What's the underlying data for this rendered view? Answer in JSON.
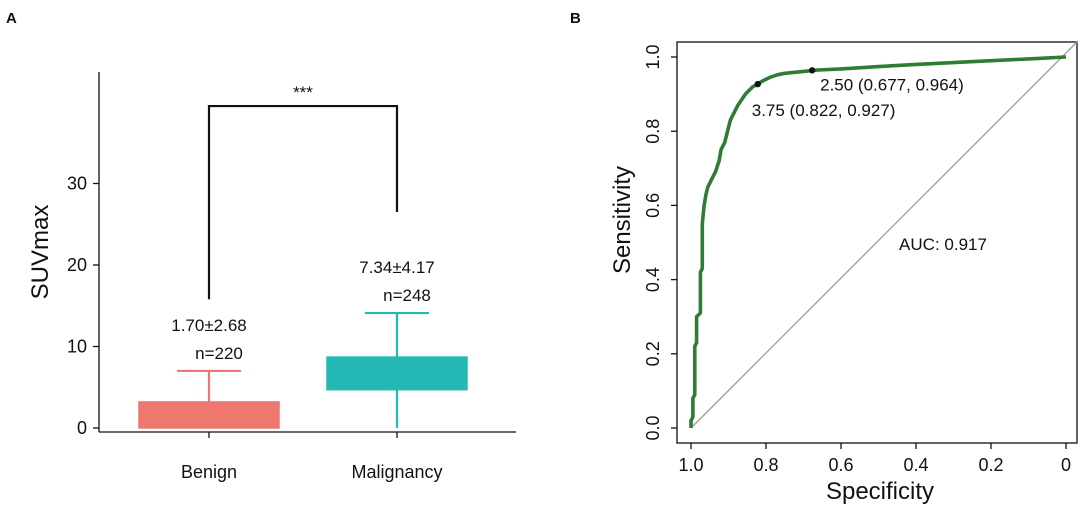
{
  "colors": {
    "benign": "#ee7770",
    "malignancy": "#26b8b4",
    "roc_line": "#2e7d32",
    "diagonal": "#9a9a9a",
    "axis": "#111111",
    "auc_text": "#2e7d32"
  },
  "chart_data": [
    {
      "panel": "A",
      "type": "box",
      "title": "",
      "xlabel": "",
      "ylabel": "SUVmax",
      "ylim": [
        0,
        45
      ],
      "yticks": [
        0,
        10,
        20,
        30
      ],
      "categories": [
        "Benign",
        "Malignancy"
      ],
      "boxes": [
        {
          "name": "Benign",
          "q1": 0,
          "median": 0,
          "q3": 3.2,
          "whisker_low": 0,
          "whisker_high": 7.0,
          "summary": "1.70±2.68",
          "n_label": "n=220"
        },
        {
          "name": "Malignancy",
          "q1": 4.7,
          "median": 4.7,
          "q3": 8.7,
          "whisker_low": 0,
          "whisker_high": 14.1,
          "summary": "7.34±4.17",
          "n_label": "n=248"
        }
      ],
      "significance": {
        "label": "***",
        "bar_y": 39.5,
        "left_bottom": 15.8,
        "right_bottom": 26.5
      }
    },
    {
      "panel": "B",
      "type": "line",
      "title": "",
      "xlabel": "Specificity",
      "ylabel": "Sensitivity",
      "xlim": [
        1.0,
        0
      ],
      "ylim": [
        0,
        1.0
      ],
      "xticks": [
        "1.0",
        "0.8",
        "0.6",
        "0.4",
        "0.2",
        "0"
      ],
      "xtick_values": [
        1.0,
        0.8,
        0.6,
        0.4,
        0.2,
        0
      ],
      "yticks": [
        "0.0",
        "0.2",
        "0.4",
        "0.6",
        "0.8",
        "1.0"
      ],
      "ytick_values": [
        0,
        0.2,
        0.4,
        0.6,
        0.8,
        1.0
      ],
      "auc_label": "AUC: 0.917",
      "roc_curve": {
        "specificity": [
          1.0,
          1.0,
          0.995,
          0.995,
          0.99,
          0.99,
          0.985,
          0.985,
          0.975,
          0.975,
          0.97,
          0.97,
          0.965,
          0.96,
          0.955,
          0.945,
          0.94,
          0.935,
          0.925,
          0.92,
          0.91,
          0.905,
          0.9,
          0.895,
          0.885,
          0.875,
          0.865,
          0.855,
          0.845,
          0.835,
          0.822,
          0.81,
          0.79,
          0.77,
          0.75,
          0.73,
          0.71,
          0.69,
          0.677,
          0.66,
          0.6,
          0.5,
          0.4,
          0.3,
          0.2,
          0.1,
          0.0
        ],
        "sensitivity": [
          0.0,
          0.02,
          0.03,
          0.08,
          0.09,
          0.22,
          0.23,
          0.3,
          0.31,
          0.42,
          0.43,
          0.55,
          0.6,
          0.63,
          0.65,
          0.67,
          0.68,
          0.69,
          0.72,
          0.75,
          0.77,
          0.79,
          0.81,
          0.83,
          0.85,
          0.87,
          0.885,
          0.9,
          0.91,
          0.92,
          0.927,
          0.935,
          0.945,
          0.952,
          0.956,
          0.958,
          0.96,
          0.962,
          0.964,
          0.965,
          0.968,
          0.974,
          0.98,
          0.985,
          0.99,
          0.995,
          1.0
        ]
      },
      "cutoffs": [
        {
          "label": "3.75 (0.822, 0.927)",
          "specificity": 0.822,
          "sensitivity": 0.927
        },
        {
          "label": "2.50 (0.677, 0.964)",
          "specificity": 0.677,
          "sensitivity": 0.964
        }
      ]
    }
  ]
}
